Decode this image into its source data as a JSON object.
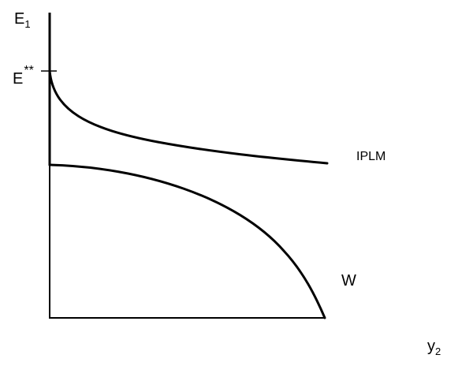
{
  "axes": {
    "y_label": "E",
    "y_subscript": "1",
    "x_label": "y",
    "x_subscript": "2"
  },
  "ticks": {
    "y_tick_label": "E",
    "y_tick_superscript": "**"
  },
  "curves": {
    "upper_label": "IPLM",
    "lower_label": "W"
  }
}
